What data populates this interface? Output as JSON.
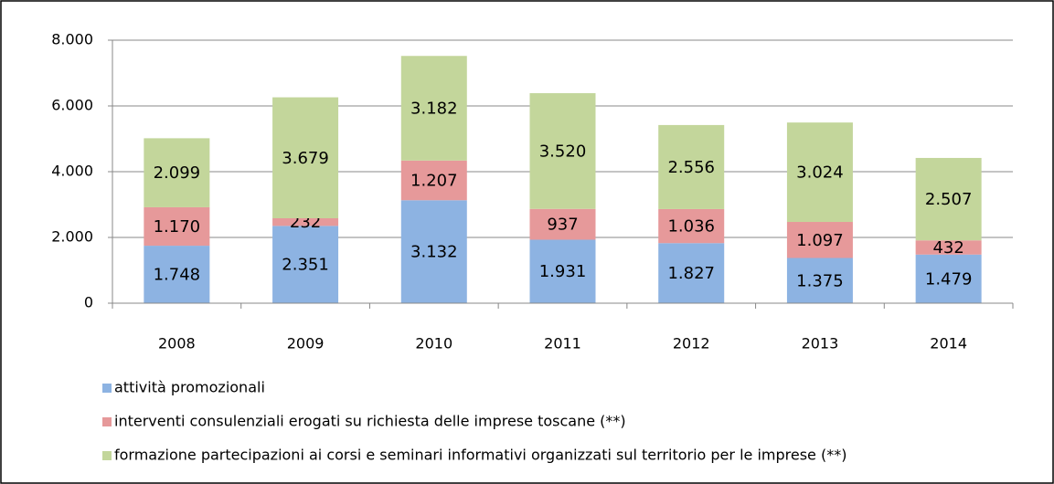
{
  "chart_data": {
    "type": "bar",
    "stacked": true,
    "categories": [
      "2008",
      "2009",
      "2010",
      "2011",
      "2012",
      "2013",
      "2014"
    ],
    "series": [
      {
        "name": "attività promozionali",
        "color": "#8db3e2",
        "values": [
          1748,
          2351,
          3132,
          1931,
          1827,
          1375,
          1479
        ],
        "value_labels": [
          "1.748",
          "2.351",
          "3.132",
          "1.931",
          "1.827",
          "1.375",
          "1.479"
        ]
      },
      {
        "name": "interventi consulenziali erogati su richiesta delle imprese toscane (**)",
        "color": "#e6999a",
        "values": [
          1170,
          232,
          1207,
          937,
          1036,
          1097,
          432
        ],
        "value_labels": [
          "1.170",
          "232",
          "1.207",
          "937",
          "1.036",
          "1.097",
          "432"
        ]
      },
      {
        "name": "formazione partecipazioni ai corsi e seminari informativi organizzati sul territorio per le imprese (**)",
        "color": "#c3d69b",
        "values": [
          2099,
          3679,
          3182,
          3520,
          2556,
          3024,
          2507
        ],
        "value_labels": [
          "2.099",
          "3.679",
          "3.182",
          "3.520",
          "2.556",
          "3.024",
          "2.507"
        ]
      }
    ],
    "ylim": [
      0,
      8000
    ],
    "yticks": [
      0,
      {
        "value": 2000,
        "label": "2.000"
      },
      {
        "value": 4000,
        "label": "4.000"
      },
      {
        "value": 6000,
        "label": "6.000"
      },
      {
        "value": 8000,
        "label": "8.000"
      }
    ],
    "grid": true,
    "legend": "bottom"
  }
}
